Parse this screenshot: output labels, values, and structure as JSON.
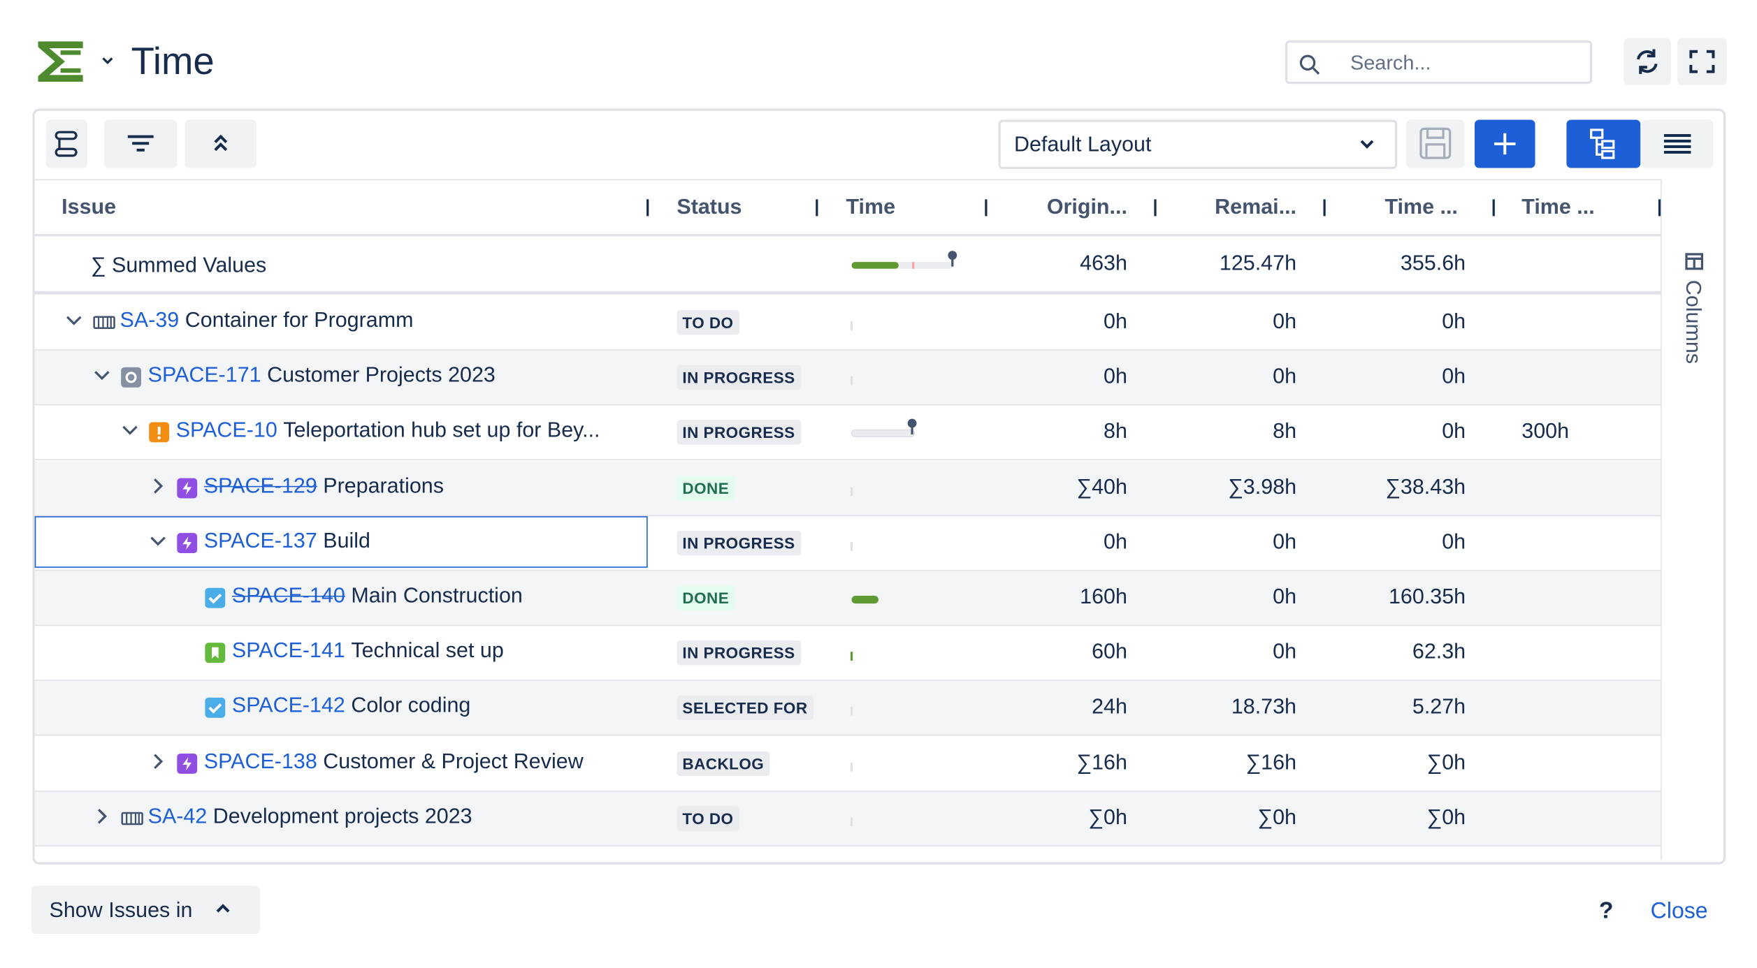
{
  "header": {
    "title": "Time",
    "search_placeholder": "Search..."
  },
  "toolbar": {
    "layout": "Default Layout"
  },
  "columns": [
    "Issue",
    "Status",
    "Time",
    "Origin...",
    "Remai...",
    "Time ...",
    "Time ..."
  ],
  "summed": {
    "label": "∑ Summed Values",
    "values": [
      "463h",
      "125.47h",
      "355.6h",
      null
    ]
  },
  "side_panel": "Columns",
  "rows": [
    {
      "key": "SA-39",
      "summary": "Container for Programm",
      "status": "TO DO",
      "icon": "container",
      "values": [
        "0h",
        "0h",
        "0h",
        null
      ],
      "children": [
        {
          "key": "SPACE-171",
          "summary": "Customer Projects 2023",
          "status": "IN PROGRESS",
          "icon": "initiative",
          "values": [
            "0h",
            "0h",
            "0h",
            null
          ],
          "children": [
            {
              "key": "SPACE-10",
              "summary": "Teleportation hub set up for Bey...",
              "status": "IN PROGRESS",
              "icon": "priority",
              "bar": "estimate",
              "values": [
                "8h",
                "8h",
                "0h",
                "300h"
              ],
              "children": [
                {
                  "key": "SPACE-129",
                  "summary": "Preparations",
                  "status": "DONE",
                  "icon": "epic",
                  "collapsed": true,
                  "values": [
                    "∑40h",
                    "∑3.98h",
                    "∑38.43h",
                    null
                  ]
                },
                {
                  "key": "SPACE-137",
                  "summary": "Build",
                  "status": "IN PROGRESS",
                  "icon": "epic",
                  "selected": true,
                  "values": [
                    "0h",
                    "0h",
                    "0h",
                    null
                  ],
                  "children": [
                    {
                      "key": "SPACE-140",
                      "summary": "Main Construction",
                      "status": "DONE",
                      "icon": "task",
                      "bar": "spent",
                      "values": [
                        "160h",
                        "0h",
                        "160.35h",
                        null
                      ]
                    },
                    {
                      "key": "SPACE-141",
                      "summary": "Technical set up",
                      "status": "IN PROGRESS",
                      "icon": "story",
                      "values": [
                        "60h",
                        "0h",
                        "62.3h",
                        null
                      ]
                    },
                    {
                      "key": "SPACE-142",
                      "summary": "Color coding",
                      "status": "SELECTED FOR",
                      "icon": "task",
                      "values": [
                        "24h",
                        "18.73h",
                        "5.27h",
                        null
                      ]
                    }
                  ]
                },
                {
                  "key": "SPACE-138",
                  "summary": "Customer & Project Review",
                  "status": "BACKLOG",
                  "icon": "epic",
                  "collapsed": true,
                  "values": [
                    "∑16h",
                    "∑16h",
                    "∑0h",
                    null
                  ]
                }
              ]
            }
          ]
        },
        {
          "key": "SA-42",
          "summary": "Development projects 2023",
          "status": "TO DO",
          "icon": "container",
          "collapsed": true,
          "values": [
            "∑0h",
            "∑0h",
            "∑0h",
            null
          ]
        }
      ]
    }
  ],
  "footer": {
    "show_issues": "Show Issues in",
    "help": "?",
    "close": "Close"
  }
}
